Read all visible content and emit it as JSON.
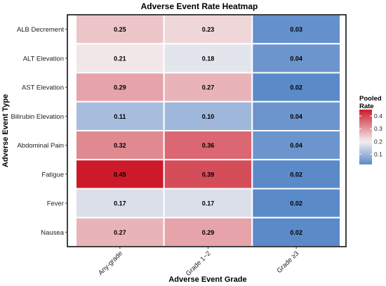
{
  "chart_data": {
    "type": "heatmap",
    "title": "Adverse Event Rate Heatmap",
    "xlabel": "Adverse Event Grade",
    "ylabel": "Adverse Event Type",
    "x_categories": [
      "Any-grade",
      "Grade 1~2",
      "Grade ≥3"
    ],
    "y_categories": [
      "ALB Decrement",
      "ALT Elevation",
      "AST Elevation",
      "Bilirubin Elevation",
      "Abdominal Pain",
      "Fatigue",
      "Fever",
      "Nausea"
    ],
    "values": [
      [
        0.25,
        0.23,
        0.03
      ],
      [
        0.21,
        0.18,
        0.04
      ],
      [
        0.29,
        0.27,
        0.02
      ],
      [
        0.11,
        0.1,
        0.04
      ],
      [
        0.32,
        0.36,
        0.04
      ],
      [
        0.45,
        0.39,
        0.02
      ],
      [
        0.17,
        0.17,
        0.02
      ],
      [
        0.27,
        0.29,
        0.02
      ]
    ],
    "value_labels": [
      [
        "0.25",
        "0.23",
        "0.03"
      ],
      [
        "0.21",
        "0.18",
        "0.04"
      ],
      [
        "0.29",
        "0.27",
        "0.02"
      ],
      [
        "0.11",
        "0.10",
        "0.04"
      ],
      [
        "0.32",
        "0.36",
        "0.04"
      ],
      [
        "0.45",
        "0.39",
        "0.02"
      ],
      [
        "0.17",
        "0.17",
        "0.02"
      ],
      [
        "0.27",
        "0.29",
        "0.02"
      ]
    ],
    "legend": {
      "title_lines": [
        "Pooled",
        "Rate"
      ],
      "ticks": [
        0.1,
        0.2,
        0.3,
        0.4
      ],
      "tick_labels": [
        "0.1",
        "0.2",
        "0.3",
        "0.4"
      ],
      "range": [
        0.02,
        0.45
      ],
      "placement": "right",
      "colors": {
        "low": "#5b8ac9",
        "mid": "#f4f0f0",
        "high": "#cd1a2b",
        "midpoint": 0.2
      }
    },
    "grid": false
  }
}
